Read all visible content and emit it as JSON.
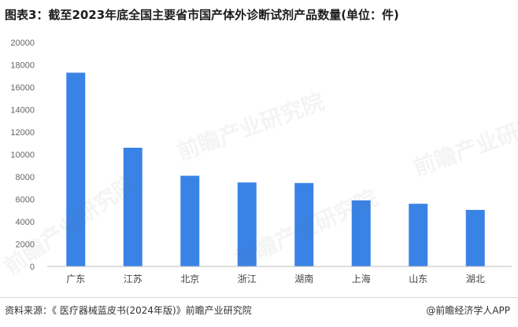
{
  "title": "图表3：截至2023年底全国主要省市国产体外诊断试剂产品数量(单位：件)",
  "source": "资料来源：《 医疗器械蓝皮书(2024年版)》前瞻产业研究院",
  "brand": "@前瞻经济学人APP",
  "watermark": "前瞻产业研究院",
  "colors": {
    "bar": "#3a83e6",
    "axis": "#bfbfbf",
    "tick_text": "#666666"
  },
  "chart_data": {
    "type": "bar",
    "title": "图表3：截至2023年底全国主要省市国产体外诊断试剂产品数量(单位：件)",
    "xlabel": "",
    "ylabel": "",
    "categories": [
      "广东",
      "江苏",
      "北京",
      "浙江",
      "湖南",
      "上海",
      "山东",
      "湖北"
    ],
    "values": [
      17300,
      10600,
      8100,
      7500,
      7450,
      5900,
      5600,
      5050
    ],
    "ylim": [
      0,
      20000
    ],
    "yticks": [
      0,
      2000,
      4000,
      6000,
      8000,
      10000,
      12000,
      14000,
      16000,
      18000,
      20000
    ],
    "grid": false,
    "legend": "none"
  }
}
